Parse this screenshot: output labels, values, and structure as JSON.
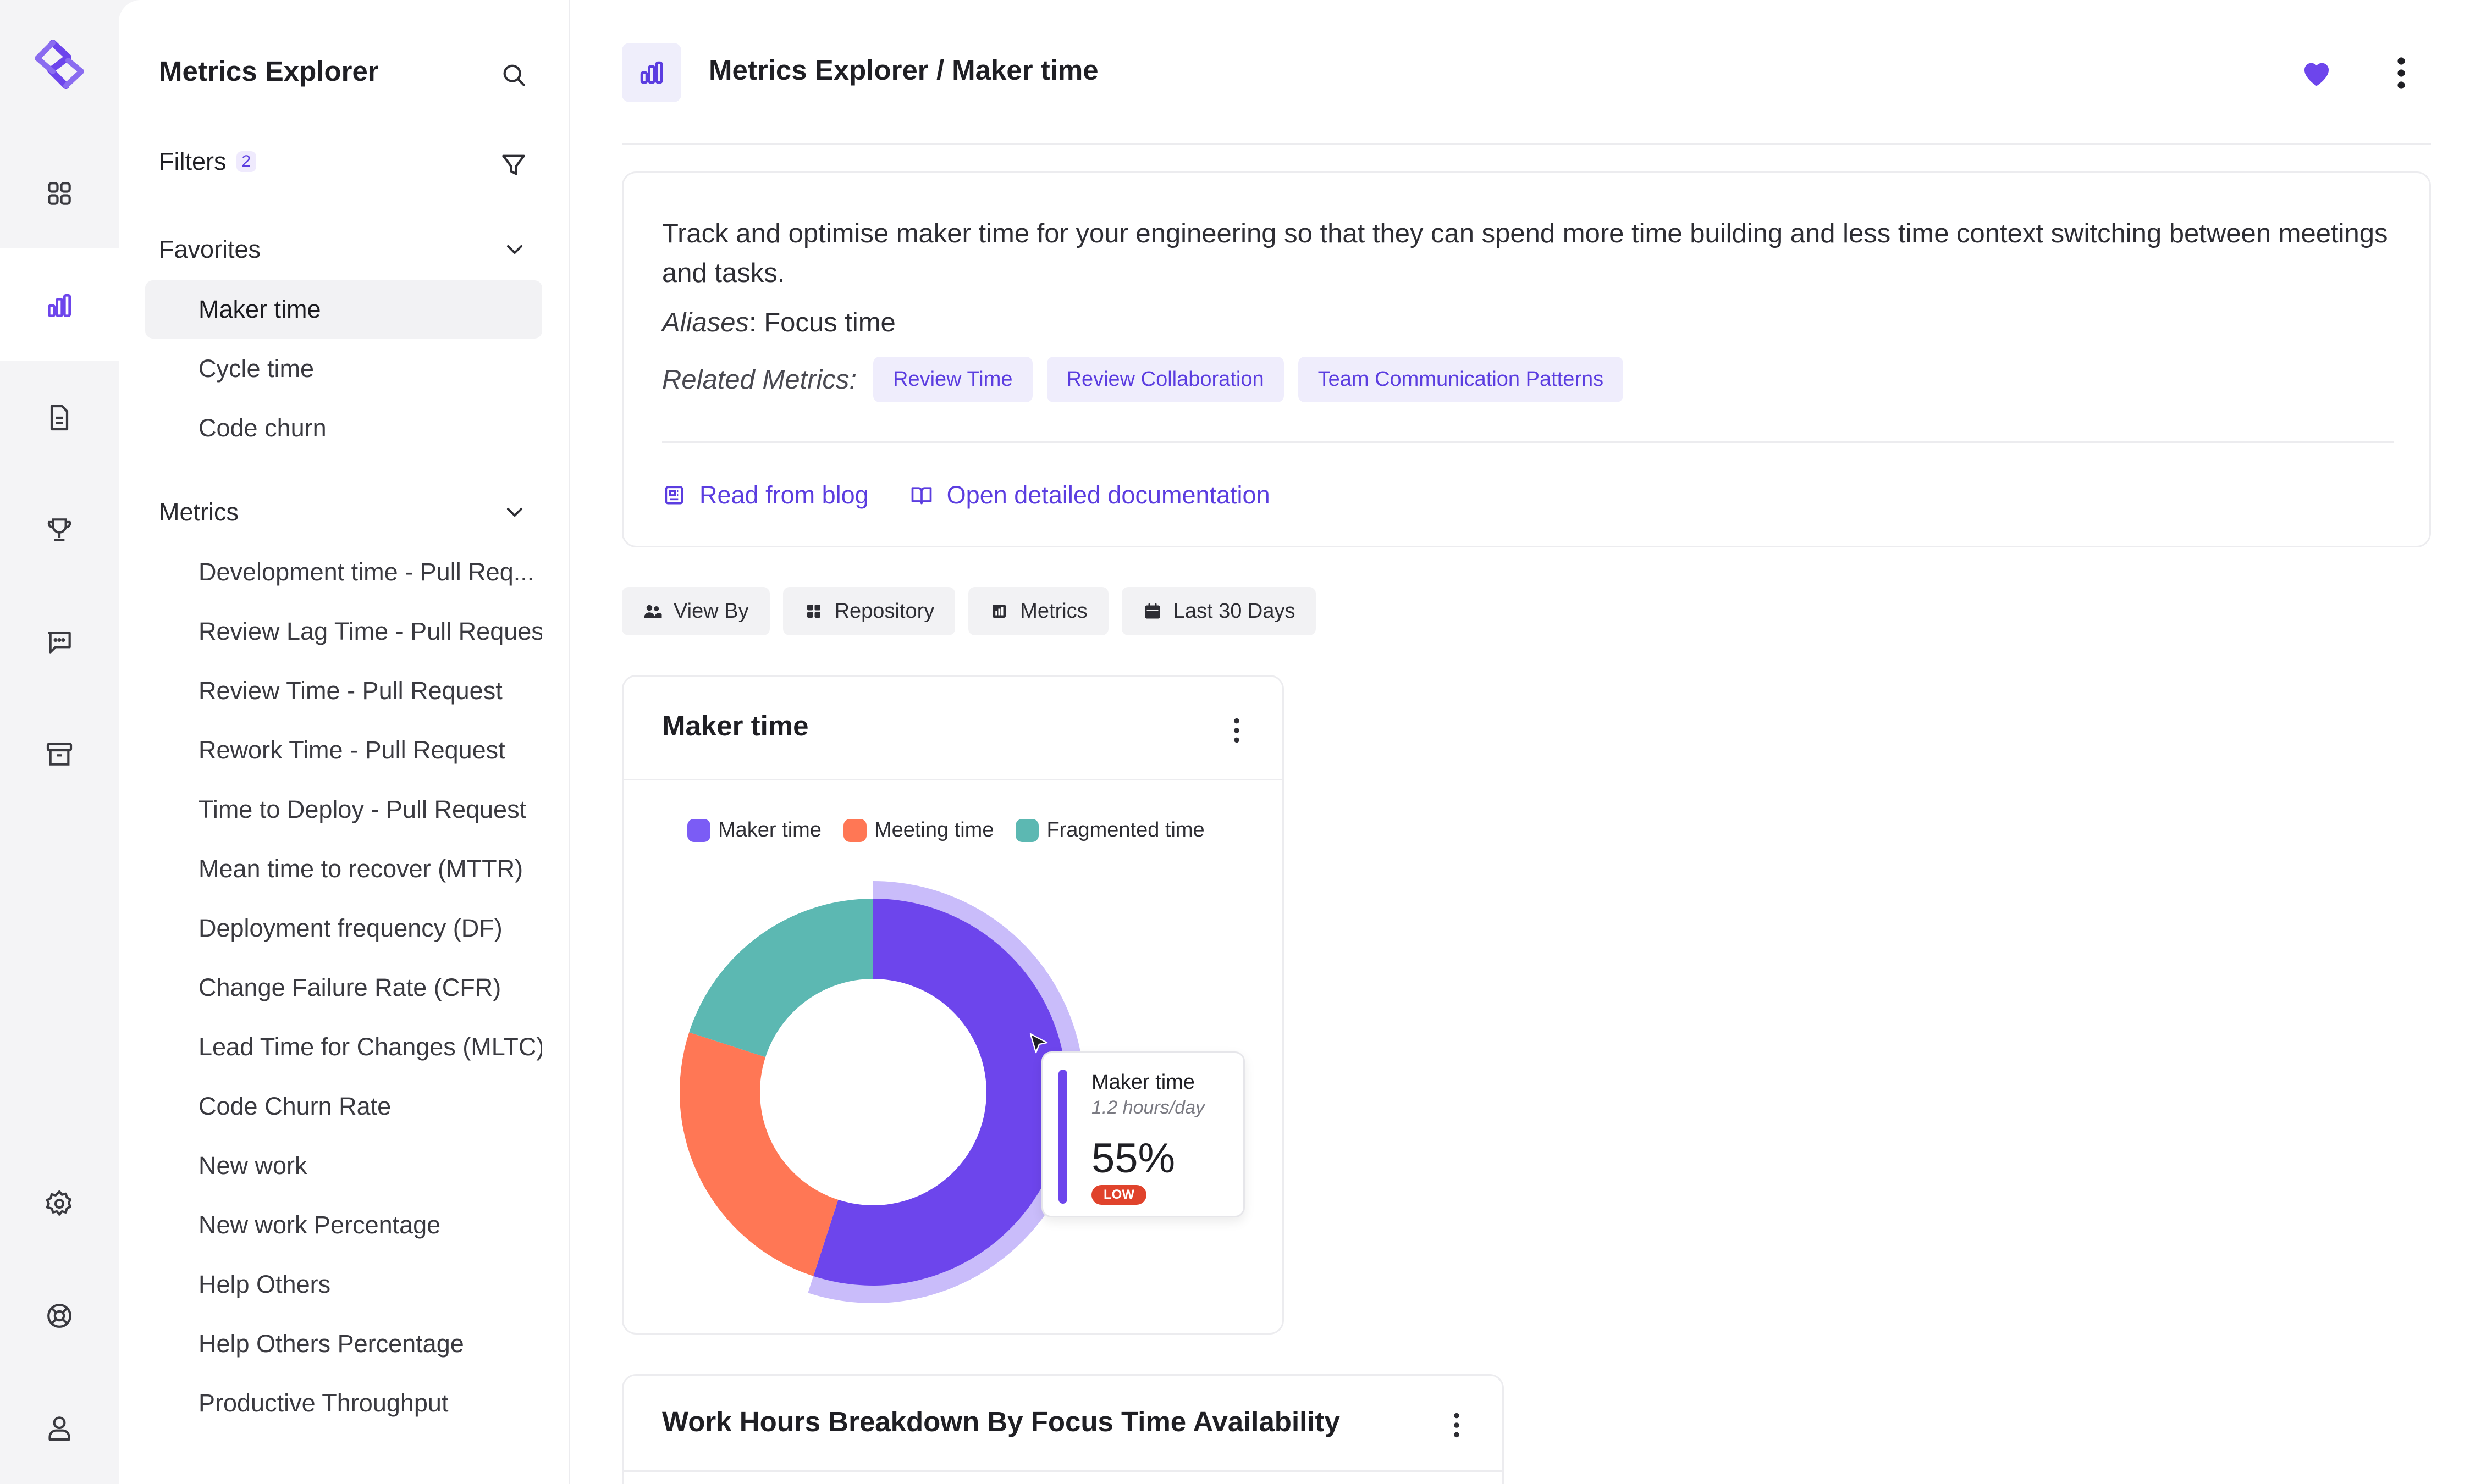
{
  "sidebar": {
    "title": "Metrics Explorer",
    "filters_label": "Filters",
    "filters_count": "2",
    "favorites_header": "Favorites",
    "favorites": [
      "Maker time",
      "Cycle time",
      "Code churn"
    ],
    "metrics_header": "Metrics",
    "metrics": [
      "Development time - Pull Req...",
      "Review Lag Time - Pull Request",
      "Review Time - Pull Request",
      "Rework Time - Pull Request",
      "Time to Deploy - Pull Request",
      "Mean time to recover (MTTR)",
      "Deployment frequency (DF)",
      "Change Failure Rate (CFR)",
      "Lead Time for Changes (MLTC)",
      "Code Churn Rate",
      "New work",
      "New work Percentage",
      "Help Others",
      "Help Others Percentage",
      "Productive Throughput"
    ]
  },
  "header": {
    "breadcrumb": "Metrics Explorer / Maker time"
  },
  "info": {
    "description": "Track and optimise maker time for your engineering so that they can spend more time building and less time context switching between meetings and tasks.",
    "aliases_label": "Aliases",
    "aliases_value": ": Focus time",
    "related_label": "Related Metrics:",
    "related": [
      "Review Time",
      "Review Collaboration",
      "Team Communication Patterns"
    ],
    "link_blog": "Read from blog",
    "link_docs": "Open detailed documentation"
  },
  "filters": {
    "view_by": "View By",
    "repository": "Repository",
    "metrics": "Metrics",
    "period": "Last 30 Days"
  },
  "chart_card": {
    "title": "Maker time"
  },
  "chart_data": {
    "type": "pie",
    "title": "Maker time",
    "series": [
      {
        "name": "Maker time",
        "value": 55,
        "color": "#6d45ec"
      },
      {
        "name": "Meeting time",
        "value": 25,
        "color": "#ff7755"
      },
      {
        "name": "Fragmented time",
        "value": 20,
        "color": "#5cb8b2"
      }
    ],
    "highlighted": "Maker time",
    "legend": "top"
  },
  "tooltip": {
    "title": "Maker time",
    "subtitle": "1.2 hours/day",
    "value": "55%",
    "badge": "LOW"
  },
  "card2": {
    "title": "Work Hours Breakdown By Focus Time Availability"
  },
  "colors": {
    "accent": "#5b3de0",
    "maker": "#6d45ec",
    "meeting": "#ff7755",
    "fragmented": "#5cb8b2",
    "low": "#e0432c"
  }
}
